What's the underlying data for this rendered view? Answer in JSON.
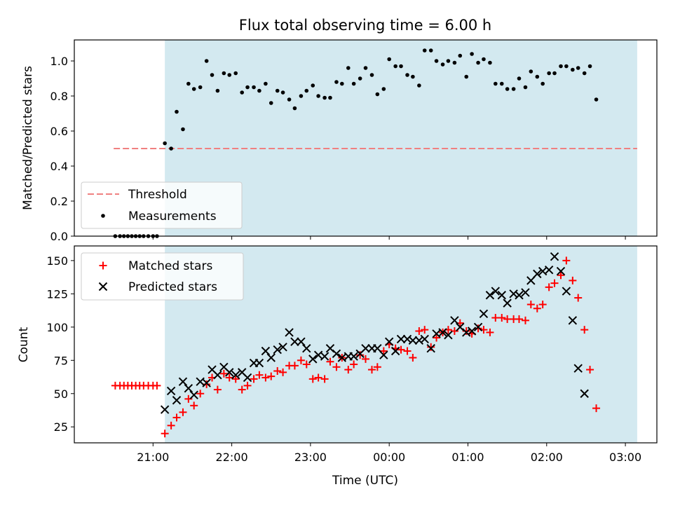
{
  "chart_data": [
    {
      "type": "scatter",
      "title": "Flux total observing time = 6.00 h",
      "ylabel": "Matched/Predicted stars",
      "xlabel": "",
      "ylim": [
        0,
        1.12
      ],
      "y_ticks": [
        "0.0",
        "0.2",
        "0.4",
        "0.6",
        "0.8",
        "1.0"
      ],
      "shaded_span": {
        "start_h": 21.15,
        "end_h": 27.15,
        "color": "#d3e9f0"
      },
      "threshold": {
        "name": "Threshold",
        "value": 0.5,
        "x_range_h": [
          20.5,
          27.15
        ],
        "color": "#f08080"
      },
      "legend": {
        "location": "lower left",
        "entries": [
          "Threshold",
          "Measurements"
        ]
      },
      "series": [
        {
          "name": "Measurements",
          "color": "#000000",
          "marker": "dot",
          "points": [
            [
              20.52,
              0
            ],
            [
              20.58,
              0
            ],
            [
              20.63,
              0
            ],
            [
              20.68,
              0
            ],
            [
              20.73,
              0
            ],
            [
              20.78,
              0
            ],
            [
              20.83,
              0
            ],
            [
              20.88,
              0
            ],
            [
              20.94,
              0
            ],
            [
              21.0,
              0
            ],
            [
              21.05,
              0
            ],
            [
              21.15,
              0.53
            ],
            [
              21.23,
              0.5
            ],
            [
              21.3,
              0.71
            ],
            [
              21.38,
              0.61
            ],
            [
              21.45,
              0.87
            ],
            [
              21.52,
              0.84
            ],
            [
              21.6,
              0.85
            ],
            [
              21.68,
              1.0
            ],
            [
              21.75,
              0.92
            ],
            [
              21.82,
              0.83
            ],
            [
              21.9,
              0.93
            ],
            [
              21.97,
              0.92
            ],
            [
              22.05,
              0.93
            ],
            [
              22.13,
              0.82
            ],
            [
              22.2,
              0.85
            ],
            [
              22.28,
              0.85
            ],
            [
              22.35,
              0.83
            ],
            [
              22.43,
              0.87
            ],
            [
              22.5,
              0.76
            ],
            [
              22.58,
              0.83
            ],
            [
              22.65,
              0.82
            ],
            [
              22.73,
              0.78
            ],
            [
              22.8,
              0.73
            ],
            [
              22.88,
              0.8
            ],
            [
              22.95,
              0.83
            ],
            [
              23.03,
              0.86
            ],
            [
              23.1,
              0.8
            ],
            [
              23.18,
              0.79
            ],
            [
              23.25,
              0.79
            ],
            [
              23.33,
              0.88
            ],
            [
              23.4,
              0.87
            ],
            [
              23.48,
              0.96
            ],
            [
              23.55,
              0.87
            ],
            [
              23.63,
              0.9
            ],
            [
              23.7,
              0.96
            ],
            [
              23.78,
              0.92
            ],
            [
              23.85,
              0.81
            ],
            [
              23.93,
              0.84
            ],
            [
              24.0,
              1.01
            ],
            [
              24.08,
              0.97
            ],
            [
              24.15,
              0.97
            ],
            [
              24.23,
              0.92
            ],
            [
              24.3,
              0.91
            ],
            [
              24.38,
              0.86
            ],
            [
              24.45,
              1.06
            ],
            [
              24.53,
              1.06
            ],
            [
              24.6,
              1.0
            ],
            [
              24.68,
              0.98
            ],
            [
              24.75,
              1.0
            ],
            [
              24.83,
              0.99
            ],
            [
              24.9,
              1.03
            ],
            [
              24.98,
              0.91
            ],
            [
              25.05,
              1.04
            ],
            [
              25.13,
              0.99
            ],
            [
              25.2,
              1.01
            ],
            [
              25.28,
              0.99
            ],
            [
              25.35,
              0.87
            ],
            [
              25.43,
              0.87
            ],
            [
              25.5,
              0.84
            ],
            [
              25.58,
              0.84
            ],
            [
              25.65,
              0.9
            ],
            [
              25.73,
              0.85
            ],
            [
              25.8,
              0.94
            ],
            [
              25.88,
              0.91
            ],
            [
              25.95,
              0.87
            ],
            [
              26.03,
              0.93
            ],
            [
              26.1,
              0.93
            ],
            [
              26.18,
              0.97
            ],
            [
              26.25,
              0.97
            ],
            [
              26.33,
              0.95
            ],
            [
              26.4,
              0.96
            ],
            [
              26.48,
              0.93
            ],
            [
              26.55,
              0.97
            ],
            [
              26.63,
              0.78
            ]
          ]
        }
      ]
    },
    {
      "type": "scatter",
      "title": "",
      "xlabel": "Time (UTC)",
      "ylabel": "Count",
      "ylim": [
        13,
        161
      ],
      "y_ticks": [
        "25",
        "50",
        "75",
        "100",
        "125",
        "150"
      ],
      "x_ticks": [
        "21:00",
        "22:00",
        "23:00",
        "00:00",
        "01:00",
        "02:00",
        "03:00"
      ],
      "shaded_span": {
        "start_h": 21.15,
        "end_h": 27.15,
        "color": "#d3e9f0"
      },
      "legend": {
        "location": "upper left",
        "entries": [
          "Matched stars",
          "Predicted stars"
        ]
      },
      "series": [
        {
          "name": "Matched stars",
          "color": "#ff0000",
          "marker": "plus",
          "points": [
            [
              20.52,
              56
            ],
            [
              20.58,
              56
            ],
            [
              20.63,
              56
            ],
            [
              20.68,
              56
            ],
            [
              20.73,
              56
            ],
            [
              20.78,
              56
            ],
            [
              20.83,
              56
            ],
            [
              20.88,
              56
            ],
            [
              20.94,
              56
            ],
            [
              21.0,
              56
            ],
            [
              21.05,
              56
            ],
            [
              21.15,
              20
            ],
            [
              21.23,
              26
            ],
            [
              21.3,
              32
            ],
            [
              21.38,
              36
            ],
            [
              21.45,
              46
            ],
            [
              21.52,
              41
            ],
            [
              21.6,
              50
            ],
            [
              21.68,
              57
            ],
            [
              21.75,
              62
            ],
            [
              21.82,
              53
            ],
            [
              21.9,
              65
            ],
            [
              21.97,
              62
            ],
            [
              22.05,
              61
            ],
            [
              22.13,
              53
            ],
            [
              22.2,
              56
            ],
            [
              22.28,
              61
            ],
            [
              22.35,
              64
            ],
            [
              22.43,
              62
            ],
            [
              22.5,
              63
            ],
            [
              22.58,
              67
            ],
            [
              22.65,
              66
            ],
            [
              22.73,
              71
            ],
            [
              22.8,
              71
            ],
            [
              22.88,
              75
            ],
            [
              22.95,
              72
            ],
            [
              23.03,
              61
            ],
            [
              23.1,
              62
            ],
            [
              23.18,
              61
            ],
            [
              23.25,
              74
            ],
            [
              23.33,
              70
            ],
            [
              23.4,
              77
            ],
            [
              23.48,
              68
            ],
            [
              23.55,
              72
            ],
            [
              23.63,
              79
            ],
            [
              23.7,
              76
            ],
            [
              23.78,
              68
            ],
            [
              23.85,
              70
            ],
            [
              23.93,
              82
            ],
            [
              24.0,
              87
            ],
            [
              24.08,
              84
            ],
            [
              24.15,
              83
            ],
            [
              24.23,
              82
            ],
            [
              24.3,
              77
            ],
            [
              24.38,
              97
            ],
            [
              24.45,
              98
            ],
            [
              24.53,
              85
            ],
            [
              24.6,
              92
            ],
            [
              24.68,
              96
            ],
            [
              24.75,
              98
            ],
            [
              24.83,
              97
            ],
            [
              24.9,
              103
            ],
            [
              24.98,
              97
            ],
            [
              25.05,
              95
            ],
            [
              25.13,
              99
            ],
            [
              25.2,
              98
            ],
            [
              25.28,
              96
            ],
            [
              25.35,
              107
            ],
            [
              25.43,
              107
            ],
            [
              25.5,
              106
            ],
            [
              25.58,
              106
            ],
            [
              25.65,
              106
            ],
            [
              25.73,
              105
            ],
            [
              25.8,
              117
            ],
            [
              25.88,
              114
            ],
            [
              25.95,
              117
            ],
            [
              26.03,
              130
            ],
            [
              26.1,
              133
            ],
            [
              26.18,
              139
            ],
            [
              26.25,
              150
            ],
            [
              26.33,
              135
            ],
            [
              26.4,
              122
            ],
            [
              26.48,
              98
            ],
            [
              26.55,
              68
            ],
            [
              26.63,
              39
            ]
          ]
        },
        {
          "name": "Predicted stars",
          "color": "#000000",
          "marker": "x",
          "points": [
            [
              21.15,
              38
            ],
            [
              21.23,
              52
            ],
            [
              21.3,
              45
            ],
            [
              21.38,
              59
            ],
            [
              21.45,
              54
            ],
            [
              21.52,
              49
            ],
            [
              21.6,
              59
            ],
            [
              21.68,
              58
            ],
            [
              21.75,
              68
            ],
            [
              21.82,
              64
            ],
            [
              21.9,
              70
            ],
            [
              21.97,
              66
            ],
            [
              22.05,
              64
            ],
            [
              22.13,
              66
            ],
            [
              22.2,
              62
            ],
            [
              22.28,
              73
            ],
            [
              22.35,
              73
            ],
            [
              22.43,
              82
            ],
            [
              22.5,
              77
            ],
            [
              22.58,
              83
            ],
            [
              22.65,
              85
            ],
            [
              22.73,
              96
            ],
            [
              22.8,
              89
            ],
            [
              22.88,
              89
            ],
            [
              22.95,
              84
            ],
            [
              23.03,
              76
            ],
            [
              23.1,
              79
            ],
            [
              23.18,
              78
            ],
            [
              23.25,
              84
            ],
            [
              23.33,
              80
            ],
            [
              23.4,
              77
            ],
            [
              23.48,
              78
            ],
            [
              23.55,
              78
            ],
            [
              23.63,
              80
            ],
            [
              23.7,
              84
            ],
            [
              23.78,
              84
            ],
            [
              23.85,
              84
            ],
            [
              23.93,
              79
            ],
            [
              24.0,
              89
            ],
            [
              24.08,
              82
            ],
            [
              24.15,
              91
            ],
            [
              24.23,
              91
            ],
            [
              24.3,
              90
            ],
            [
              24.38,
              90
            ],
            [
              24.45,
              91
            ],
            [
              24.53,
              84
            ],
            [
              24.6,
              95
            ],
            [
              24.68,
              96
            ],
            [
              24.75,
              94
            ],
            [
              24.83,
              105
            ],
            [
              24.9,
              100
            ],
            [
              24.98,
              96
            ],
            [
              25.05,
              97
            ],
            [
              25.13,
              100
            ],
            [
              25.2,
              110
            ],
            [
              25.28,
              124
            ],
            [
              25.35,
              127
            ],
            [
              25.43,
              124
            ],
            [
              25.5,
              118
            ],
            [
              25.58,
              125
            ],
            [
              25.65,
              124
            ],
            [
              25.73,
              126
            ],
            [
              25.8,
              135
            ],
            [
              25.88,
              140
            ],
            [
              25.95,
              142
            ],
            [
              26.03,
              143
            ],
            [
              26.1,
              153
            ],
            [
              26.18,
              142
            ],
            [
              26.25,
              127
            ],
            [
              26.33,
              105
            ],
            [
              26.4,
              69
            ],
            [
              26.48,
              50
            ]
          ]
        }
      ]
    }
  ]
}
